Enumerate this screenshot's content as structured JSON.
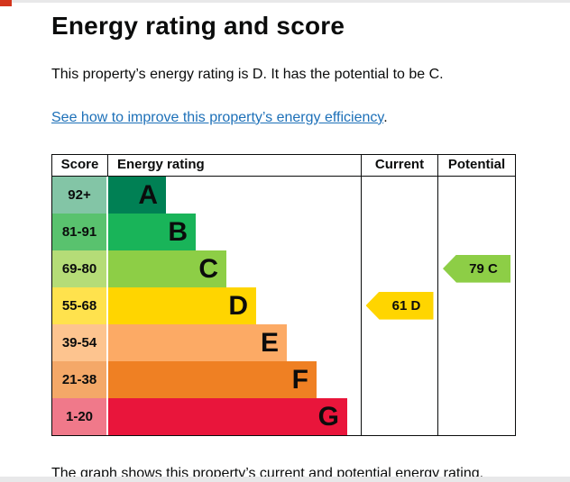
{
  "page": {
    "title": "Energy rating and score",
    "summary": "This property’s energy rating is D. It has the potential to be C.",
    "improve_link": "See how to improve this property’s energy efficiency",
    "improve_link_suffix": ".",
    "caption": "The graph shows this property’s current and potential energy rating."
  },
  "colors": {
    "text": "#0b0c0c",
    "link": "#1d70b8",
    "table_border": "#0b0c0c"
  },
  "chart_data": {
    "type": "table",
    "title": "Energy rating and score",
    "columns": {
      "score": "Score",
      "rating": "Energy rating",
      "current": "Current",
      "potential": "Potential"
    },
    "bands": [
      {
        "score": "92+",
        "letter": "A",
        "color": "#008054",
        "score_style": "background:#83c5a6",
        "bar_style": "width:64px;background:#008054"
      },
      {
        "score": "81-91",
        "letter": "B",
        "color": "#19b459",
        "score_style": "background:#59c26e",
        "bar_style": "width:97px;background:#19b459"
      },
      {
        "score": "69-80",
        "letter": "C",
        "color": "#8dce46",
        "score_style": "background:#b5dc77",
        "bar_style": "width:131px;background:#8dce46"
      },
      {
        "score": "55-68",
        "letter": "D",
        "color": "#ffd500",
        "score_style": "background:#ffe24d",
        "bar_style": "width:164px;background:#ffd500"
      },
      {
        "score": "39-54",
        "letter": "E",
        "color": "#fcaa65",
        "score_style": "background:#fdc48f",
        "bar_style": "width:198px;background:#fcaa65"
      },
      {
        "score": "21-38",
        "letter": "F",
        "color": "#ef8023",
        "score_style": "background:#f4a868",
        "bar_style": "width:231px;background:#ef8023"
      },
      {
        "score": "1-20",
        "letter": "G",
        "color": "#e9153b",
        "score_style": "background:#f0798a",
        "bar_style": "width:265px;background:#e9153b"
      }
    ],
    "current": {
      "value": 61,
      "letter": "D",
      "label": "61 D",
      "arrow_style": "background:#ffd500"
    },
    "potential": {
      "value": 79,
      "letter": "C",
      "label": "79 C",
      "arrow_style": "background:#8dce46"
    }
  }
}
